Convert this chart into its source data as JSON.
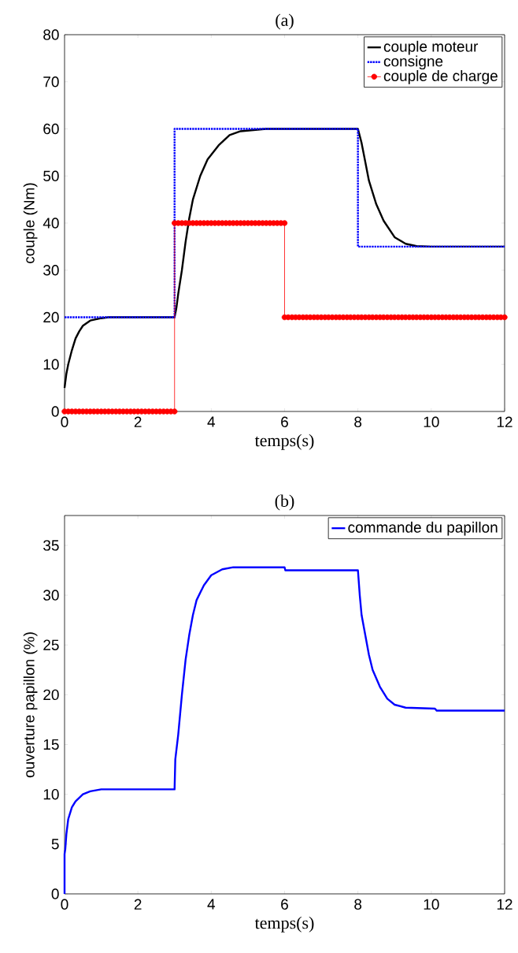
{
  "chart_data": [
    {
      "type": "line",
      "title": "(a)",
      "xlabel": "temps(s)",
      "ylabel": "couple (Nm)",
      "xlim": [
        0,
        12
      ],
      "ylim": [
        0,
        80
      ],
      "xticks": [
        0,
        2,
        4,
        6,
        8,
        10,
        12
      ],
      "yticks": [
        0,
        10,
        20,
        30,
        40,
        50,
        60,
        70,
        80
      ],
      "legend": "top right",
      "series": [
        {
          "name": "couple moteur",
          "color": "#000000",
          "line_style": "solid",
          "marker": "none",
          "x": [
            0,
            0.05,
            0.1,
            0.2,
            0.3,
            0.4,
            0.5,
            0.7,
            1.0,
            1.2,
            3.0,
            3.05,
            3.1,
            3.2,
            3.3,
            3.4,
            3.5,
            3.7,
            3.9,
            4.2,
            4.5,
            4.8,
            5.5,
            8.0,
            8.1,
            8.2,
            8.3,
            8.5,
            8.7,
            9.0,
            9.3,
            9.6,
            10,
            12
          ],
          "values": [
            5,
            8,
            10,
            13,
            15.5,
            17,
            18.2,
            19.3,
            19.8,
            20,
            20,
            22,
            25,
            30,
            36,
            41,
            45,
            50,
            53.5,
            56.5,
            58.7,
            59.5,
            60,
            60,
            57,
            53,
            49,
            44,
            40.5,
            37,
            35.6,
            35.1,
            35,
            35
          ]
        },
        {
          "name": "consigne",
          "color": "#0000ff",
          "line_style": "dotted",
          "marker": "none",
          "x": [
            0,
            3,
            3,
            8,
            8,
            12
          ],
          "values": [
            20,
            20,
            60,
            60,
            35,
            35
          ]
        },
        {
          "name": "couple de charge",
          "color": "#ff0000",
          "line_style": "solid",
          "marker": "circle",
          "x": [
            0,
            0.1,
            0.2,
            0.3,
            0.4,
            0.5,
            0.6,
            0.7,
            0.8,
            0.9,
            1,
            1.1,
            1.2,
            1.3,
            1.4,
            1.5,
            1.6,
            1.7,
            1.8,
            1.9,
            2,
            2.1,
            2.2,
            2.3,
            2.4,
            2.5,
            2.6,
            2.7,
            2.8,
            2.9,
            3,
            3,
            3.1,
            3.2,
            3.3,
            3.4,
            3.5,
            3.6,
            3.7,
            3.8,
            3.9,
            4,
            4.1,
            4.2,
            4.3,
            4.4,
            4.5,
            4.6,
            4.7,
            4.8,
            4.9,
            5,
            5.1,
            5.2,
            5.3,
            5.4,
            5.5,
            5.6,
            5.7,
            5.8,
            5.9,
            6,
            6,
            6.1,
            6.2,
            6.3,
            6.4,
            6.5,
            6.6,
            6.7,
            6.8,
            6.9,
            7,
            7.1,
            7.2,
            7.3,
            7.4,
            7.5,
            7.6,
            7.7,
            7.8,
            7.9,
            8,
            8.1,
            8.2,
            8.3,
            8.4,
            8.5,
            8.6,
            8.7,
            8.8,
            8.9,
            9,
            9.1,
            9.2,
            9.3,
            9.4,
            9.5,
            9.6,
            9.7,
            9.8,
            9.9,
            10,
            10.1,
            10.2,
            10.3,
            10.4,
            10.5,
            10.6,
            10.7,
            10.8,
            10.9,
            11,
            11.1,
            11.2,
            11.3,
            11.4,
            11.5,
            11.6,
            11.7,
            11.8,
            11.9,
            12
          ],
          "values": [
            0,
            0,
            0,
            0,
            0,
            0,
            0,
            0,
            0,
            0,
            0,
            0,
            0,
            0,
            0,
            0,
            0,
            0,
            0,
            0,
            0,
            0,
            0,
            0,
            0,
            0,
            0,
            0,
            0,
            0,
            0,
            40,
            40,
            40,
            40,
            40,
            40,
            40,
            40,
            40,
            40,
            40,
            40,
            40,
            40,
            40,
            40,
            40,
            40,
            40,
            40,
            40,
            40,
            40,
            40,
            40,
            40,
            40,
            40,
            40,
            40,
            40,
            20,
            20,
            20,
            20,
            20,
            20,
            20,
            20,
            20,
            20,
            20,
            20,
            20,
            20,
            20,
            20,
            20,
            20,
            20,
            20,
            20,
            20,
            20,
            20,
            20,
            20,
            20,
            20,
            20,
            20,
            20,
            20,
            20,
            20,
            20,
            20,
            20,
            20,
            20,
            20,
            20,
            20,
            20,
            20,
            20,
            20,
            20,
            20,
            20,
            20,
            20,
            20,
            20,
            20,
            20,
            20,
            20,
            20,
            20,
            20,
            20
          ]
        }
      ]
    },
    {
      "type": "line",
      "title": "(b)",
      "xlabel": "temps(s)",
      "ylabel": "ouverture papillon (%)",
      "xlim": [
        0,
        12
      ],
      "ylim": [
        0,
        38
      ],
      "xticks": [
        0,
        2,
        4,
        6,
        8,
        10,
        12
      ],
      "yticks": [
        0,
        5,
        10,
        15,
        20,
        25,
        30,
        35
      ],
      "legend": "top right",
      "series": [
        {
          "name": "commande du papillon",
          "color": "#0000ff",
          "line_style": "solid",
          "marker": "none",
          "x": [
            0,
            0,
            0.02,
            0.05,
            0.1,
            0.2,
            0.3,
            0.5,
            0.7,
            1.0,
            3.0,
            3.02,
            3.1,
            3.2,
            3.3,
            3.4,
            3.5,
            3.6,
            3.8,
            4.0,
            4.3,
            4.6,
            6.0,
            6.02,
            8.0,
            8.05,
            8.1,
            8.2,
            8.3,
            8.4,
            8.6,
            8.8,
            9.0,
            9.3,
            10.1,
            10.15,
            12
          ],
          "values": [
            0,
            4,
            4.5,
            6,
            7.5,
            8.7,
            9.3,
            10,
            10.3,
            10.5,
            10.5,
            13.5,
            16,
            20,
            23.5,
            26,
            28,
            29.5,
            31,
            32,
            32.6,
            32.8,
            32.8,
            32.5,
            32.5,
            30,
            28,
            26,
            24,
            22.5,
            20.8,
            19.6,
            19,
            18.7,
            18.6,
            18.4,
            18.4
          ]
        }
      ]
    }
  ]
}
